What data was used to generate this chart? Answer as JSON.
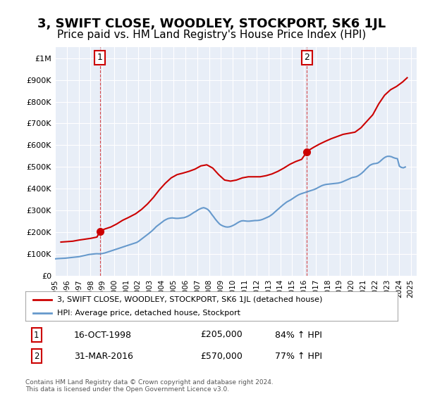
{
  "title": "3, SWIFT CLOSE, WOODLEY, STOCKPORT, SK6 1JL",
  "subtitle": "Price paid vs. HM Land Registry's House Price Index (HPI)",
  "title_fontsize": 13,
  "subtitle_fontsize": 11,
  "background_color": "#ffffff",
  "plot_bg_color": "#e8eef7",
  "grid_color": "#ffffff",
  "ylim": [
    0,
    1050000
  ],
  "xlim_start": 1995.0,
  "xlim_end": 2025.5,
  "yticks": [
    0,
    100000,
    200000,
    300000,
    400000,
    500000,
    600000,
    700000,
    800000,
    900000,
    1000000
  ],
  "ytick_labels": [
    "£0",
    "£100K",
    "£200K",
    "£300K",
    "£400K",
    "£500K",
    "£600K",
    "£700K",
    "£800K",
    "£900K",
    "£1M"
  ],
  "xtick_years": [
    1995,
    1996,
    1997,
    1998,
    1999,
    2000,
    2001,
    2002,
    2003,
    2004,
    2005,
    2006,
    2007,
    2008,
    2009,
    2010,
    2011,
    2012,
    2013,
    2014,
    2015,
    2016,
    2017,
    2018,
    2019,
    2020,
    2021,
    2022,
    2023,
    2024,
    2025
  ],
  "sale1_x": 1998.79,
  "sale1_y": 205000,
  "sale1_label": "1",
  "sale1_date": "16-OCT-1998",
  "sale1_price": "£205,000",
  "sale1_hpi": "84% ↑ HPI",
  "sale2_x": 2016.25,
  "sale2_y": 570000,
  "sale2_label": "2",
  "sale2_date": "31-MAR-2016",
  "sale2_price": "£570,000",
  "sale2_hpi": "77% ↑ HPI",
  "hpi_color": "#6699cc",
  "price_color": "#cc0000",
  "legend_label_price": "3, SWIFT CLOSE, WOODLEY, STOCKPORT, SK6 1JL (detached house)",
  "legend_label_hpi": "HPI: Average price, detached house, Stockport",
  "footer": "Contains HM Land Registry data © Crown copyright and database right 2024.\nThis data is licensed under the Open Government Licence v3.0.",
  "hpi_data": {
    "years": [
      1995.04,
      1995.21,
      1995.38,
      1995.54,
      1995.71,
      1995.88,
      1996.04,
      1996.21,
      1996.38,
      1996.54,
      1996.71,
      1996.88,
      1997.04,
      1997.21,
      1997.38,
      1997.54,
      1997.71,
      1997.88,
      1998.04,
      1998.21,
      1998.38,
      1998.54,
      1998.71,
      1998.88,
      1999.04,
      1999.21,
      1999.38,
      1999.54,
      1999.71,
      1999.88,
      2000.04,
      2000.21,
      2000.38,
      2000.54,
      2000.71,
      2000.88,
      2001.04,
      2001.21,
      2001.38,
      2001.54,
      2001.71,
      2001.88,
      2002.04,
      2002.21,
      2002.38,
      2002.54,
      2002.71,
      2002.88,
      2003.04,
      2003.21,
      2003.38,
      2003.54,
      2003.71,
      2003.88,
      2004.04,
      2004.21,
      2004.38,
      2004.54,
      2004.71,
      2004.88,
      2005.04,
      2005.21,
      2005.38,
      2005.54,
      2005.71,
      2005.88,
      2006.04,
      2006.21,
      2006.38,
      2006.54,
      2006.71,
      2006.88,
      2007.04,
      2007.21,
      2007.38,
      2007.54,
      2007.71,
      2007.88,
      2008.04,
      2008.21,
      2008.38,
      2008.54,
      2008.71,
      2008.88,
      2009.04,
      2009.21,
      2009.38,
      2009.54,
      2009.71,
      2009.88,
      2010.04,
      2010.21,
      2010.38,
      2010.54,
      2010.71,
      2010.88,
      2011.04,
      2011.21,
      2011.38,
      2011.54,
      2011.71,
      2011.88,
      2012.04,
      2012.21,
      2012.38,
      2012.54,
      2012.71,
      2012.88,
      2013.04,
      2013.21,
      2013.38,
      2013.54,
      2013.71,
      2013.88,
      2014.04,
      2014.21,
      2014.38,
      2014.54,
      2014.71,
      2014.88,
      2015.04,
      2015.21,
      2015.38,
      2015.54,
      2015.71,
      2015.88,
      2016.04,
      2016.21,
      2016.38,
      2016.54,
      2016.71,
      2016.88,
      2017.04,
      2017.21,
      2017.38,
      2017.54,
      2017.71,
      2017.88,
      2018.04,
      2018.21,
      2018.38,
      2018.54,
      2018.71,
      2018.88,
      2019.04,
      2019.21,
      2019.38,
      2019.54,
      2019.71,
      2019.88,
      2020.04,
      2020.21,
      2020.38,
      2020.54,
      2020.71,
      2020.88,
      2021.04,
      2021.21,
      2021.38,
      2021.54,
      2021.71,
      2021.88,
      2022.04,
      2022.21,
      2022.38,
      2022.54,
      2022.71,
      2022.88,
      2023.04,
      2023.21,
      2023.38,
      2023.54,
      2023.71,
      2023.88,
      2024.04,
      2024.21,
      2024.38,
      2024.54
    ],
    "values": [
      78000,
      79000,
      79500,
      80000,
      80500,
      81000,
      82000,
      83000,
      84000,
      85000,
      86000,
      87000,
      88000,
      90000,
      92000,
      94000,
      96000,
      98000,
      99000,
      100000,
      101000,
      101500,
      101000,
      101500,
      103000,
      105000,
      108000,
      111000,
      114000,
      117000,
      120000,
      123000,
      126000,
      129000,
      132000,
      135000,
      138000,
      141000,
      144000,
      147000,
      150000,
      153000,
      158000,
      165000,
      172000,
      179000,
      186000,
      193000,
      200000,
      208000,
      217000,
      226000,
      233000,
      240000,
      247000,
      254000,
      259000,
      263000,
      265000,
      266000,
      265000,
      264000,
      264000,
      265000,
      266000,
      267000,
      270000,
      274000,
      279000,
      285000,
      291000,
      296000,
      302000,
      307000,
      311000,
      313000,
      310000,
      305000,
      296000,
      283000,
      271000,
      259000,
      248000,
      238000,
      232000,
      228000,
      225000,
      224000,
      225000,
      228000,
      232000,
      237000,
      243000,
      248000,
      252000,
      253000,
      252000,
      251000,
      251000,
      252000,
      253000,
      254000,
      254000,
      255000,
      257000,
      260000,
      264000,
      268000,
      272000,
      278000,
      285000,
      293000,
      301000,
      309000,
      317000,
      325000,
      332000,
      339000,
      344000,
      349000,
      355000,
      361000,
      367000,
      372000,
      376000,
      379000,
      382000,
      385000,
      388000,
      391000,
      394000,
      397000,
      401000,
      406000,
      411000,
      415000,
      418000,
      420000,
      421000,
      422000,
      423000,
      424000,
      425000,
      426000,
      428000,
      431000,
      435000,
      439000,
      443000,
      447000,
      451000,
      453000,
      455000,
      459000,
      465000,
      472000,
      480000,
      490000,
      499000,
      507000,
      512000,
      515000,
      516000,
      518000,
      524000,
      532000,
      540000,
      546000,
      549000,
      549000,
      547000,
      543000,
      540000,
      538000,
      504000,
      498000,
      496000,
      500000
    ]
  },
  "price_data": {
    "years": [
      1995.5,
      1996.0,
      1996.5,
      1997.0,
      1997.5,
      1998.0,
      1998.54,
      1998.79,
      1999.2,
      1999.7,
      2000.2,
      2000.7,
      2001.2,
      2001.8,
      2002.3,
      2002.8,
      2003.3,
      2003.8,
      2004.3,
      2004.8,
      2005.3,
      2005.8,
      2006.3,
      2006.8,
      2007.3,
      2007.8,
      2008.3,
      2008.8,
      2009.3,
      2009.8,
      2010.3,
      2010.8,
      2011.3,
      2011.8,
      2012.3,
      2012.8,
      2013.3,
      2013.8,
      2014.3,
      2014.8,
      2015.3,
      2015.8,
      2016.25,
      2016.5,
      2016.8,
      2017.3,
      2017.8,
      2018.3,
      2018.8,
      2019.3,
      2019.8,
      2020.3,
      2020.8,
      2021.3,
      2021.8,
      2022.3,
      2022.8,
      2023.3,
      2023.8,
      2024.3,
      2024.7
    ],
    "values": [
      155000,
      157000,
      159000,
      164000,
      168000,
      172000,
      178000,
      205000,
      215000,
      224000,
      238000,
      255000,
      268000,
      285000,
      305000,
      330000,
      360000,
      395000,
      425000,
      450000,
      465000,
      472000,
      480000,
      490000,
      505000,
      510000,
      495000,
      465000,
      440000,
      435000,
      440000,
      450000,
      455000,
      455000,
      455000,
      460000,
      468000,
      480000,
      495000,
      512000,
      525000,
      535000,
      570000,
      580000,
      590000,
      605000,
      618000,
      630000,
      640000,
      650000,
      655000,
      660000,
      680000,
      710000,
      740000,
      790000,
      830000,
      855000,
      870000,
      890000,
      910000
    ]
  }
}
